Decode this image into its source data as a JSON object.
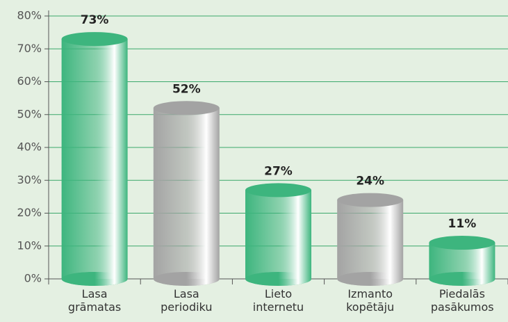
{
  "chart_data": {
    "type": "bar",
    "categories": [
      "Lasa grāmatas",
      "Lasa periodiku",
      "Lieto internetu",
      "Izmanto kopētāju",
      "Piedalās pasākumos"
    ],
    "values": [
      73,
      52,
      27,
      24,
      11
    ],
    "value_labels": [
      "73%",
      "52%",
      "27%",
      "24%",
      "11%"
    ],
    "colors": [
      "#3db57e",
      "#a3a3a3",
      "#3db57e",
      "#a3a3a3",
      "#3db57e"
    ],
    "ylim": [
      0,
      80
    ],
    "yticks": [
      {
        "value": 0,
        "label": "0%"
      },
      {
        "value": 10,
        "label": "10%"
      },
      {
        "value": 20,
        "label": "20%"
      },
      {
        "value": 30,
        "label": "30%"
      },
      {
        "value": 40,
        "label": "40%"
      },
      {
        "value": 50,
        "label": "50%"
      },
      {
        "value": 60,
        "label": "60%"
      },
      {
        "value": 70,
        "label": "70%"
      },
      {
        "value": 80,
        "label": "80%"
      }
    ],
    "grid": true
  }
}
